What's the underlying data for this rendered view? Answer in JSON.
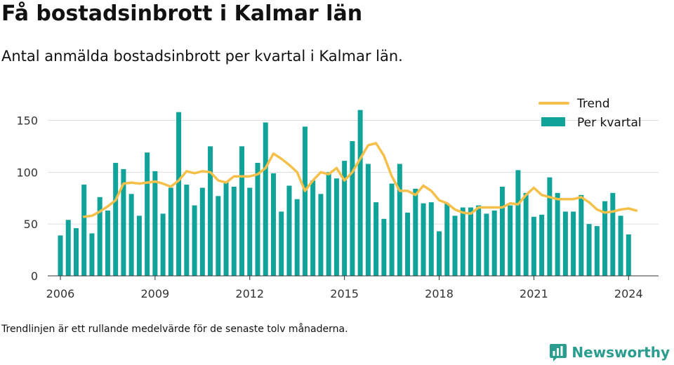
{
  "header": {
    "title": "Få bostadsinbrott i Kalmar län",
    "subtitle": "Antal anmälda bostadsinbrott per kvartal i Kalmar län."
  },
  "footer": {
    "note": "Trendlinjen är ett rullande medelvärde för de senaste tolv månaderna.",
    "brand": "Newsworthy",
    "brand_icon": "bar-chart-logo-icon"
  },
  "colors": {
    "bars": "#0fa399",
    "trend": "#f5c04a",
    "grid": "#dddddd",
    "axis": "#333333",
    "brand": "#2a9d8f"
  },
  "chart_data": {
    "type": "bar",
    "title": "Få bostadsinbrott i Kalmar län",
    "subtitle": "Antal anmälda bostadsinbrott per kvartal i Kalmar län.",
    "xlabel": "",
    "ylabel": "",
    "ylim": [
      0,
      170
    ],
    "yticks": [
      0,
      50,
      100,
      150
    ],
    "xlim": [
      2005.6,
      2024.95
    ],
    "xticks": [
      2006,
      2009,
      2012,
      2015,
      2018,
      2021,
      2024
    ],
    "grid": true,
    "legend_position": "top-right",
    "legend": [
      "Trend",
      "Per kvartal"
    ],
    "series": [
      {
        "name": "Per kvartal",
        "type": "bar",
        "start_year": 2006,
        "start_quarter": 1,
        "values": [
          39,
          54,
          46,
          88,
          41,
          76,
          63,
          109,
          103,
          79,
          58,
          119,
          101,
          60,
          85,
          158,
          88,
          68,
          85,
          125,
          77,
          91,
          86,
          125,
          85,
          109,
          148,
          99,
          62,
          87,
          74,
          144,
          92,
          79,
          100,
          94,
          111,
          130,
          160,
          108,
          71,
          55,
          89,
          108,
          61,
          84,
          70,
          71,
          43,
          70,
          58,
          66,
          66,
          68,
          60,
          63,
          86,
          68,
          102,
          80,
          57,
          59,
          95,
          80,
          62,
          62,
          78,
          50,
          48,
          72,
          80,
          58,
          40
        ]
      },
      {
        "name": "Trend",
        "type": "line",
        "points": [
          [
            2006.75,
            57
          ],
          [
            2007.0,
            58
          ],
          [
            2007.25,
            62
          ],
          [
            2007.5,
            67
          ],
          [
            2007.75,
            73
          ],
          [
            2008.0,
            89
          ],
          [
            2008.25,
            90
          ],
          [
            2008.5,
            89
          ],
          [
            2008.75,
            90
          ],
          [
            2009.0,
            91
          ],
          [
            2009.25,
            89
          ],
          [
            2009.5,
            86
          ],
          [
            2009.75,
            92
          ],
          [
            2010.0,
            101
          ],
          [
            2010.25,
            99
          ],
          [
            2010.5,
            101
          ],
          [
            2010.75,
            100
          ],
          [
            2011.0,
            92
          ],
          [
            2011.25,
            90
          ],
          [
            2011.5,
            96
          ],
          [
            2011.75,
            96
          ],
          [
            2012.0,
            96
          ],
          [
            2012.25,
            98
          ],
          [
            2012.5,
            104
          ],
          [
            2012.75,
            118
          ],
          [
            2013.0,
            113
          ],
          [
            2013.25,
            107
          ],
          [
            2013.5,
            100
          ],
          [
            2013.75,
            82
          ],
          [
            2014.0,
            92
          ],
          [
            2014.25,
            100
          ],
          [
            2014.5,
            98
          ],
          [
            2014.75,
            104
          ],
          [
            2015.0,
            92
          ],
          [
            2015.25,
            100
          ],
          [
            2015.5,
            113
          ],
          [
            2015.75,
            126
          ],
          [
            2016.0,
            128
          ],
          [
            2016.25,
            116
          ],
          [
            2016.5,
            96
          ],
          [
            2016.75,
            82
          ],
          [
            2017.0,
            82
          ],
          [
            2017.25,
            78
          ],
          [
            2017.5,
            87
          ],
          [
            2017.75,
            82
          ],
          [
            2018.0,
            73
          ],
          [
            2018.25,
            70
          ],
          [
            2018.5,
            64
          ],
          [
            2018.75,
            61
          ],
          [
            2019.0,
            60
          ],
          [
            2019.25,
            66
          ],
          [
            2019.5,
            66
          ],
          [
            2019.75,
            66
          ],
          [
            2020.0,
            66
          ],
          [
            2020.25,
            70
          ],
          [
            2020.5,
            69
          ],
          [
            2020.75,
            78
          ],
          [
            2021.0,
            85
          ],
          [
            2021.25,
            78
          ],
          [
            2021.5,
            76
          ],
          [
            2021.75,
            74
          ],
          [
            2022.0,
            74
          ],
          [
            2022.25,
            74
          ],
          [
            2022.5,
            76
          ],
          [
            2022.75,
            71
          ],
          [
            2023.0,
            64
          ],
          [
            2023.25,
            61
          ],
          [
            2023.5,
            62
          ],
          [
            2023.75,
            64
          ],
          [
            2024.0,
            65
          ],
          [
            2024.25,
            63
          ]
        ]
      }
    ]
  }
}
